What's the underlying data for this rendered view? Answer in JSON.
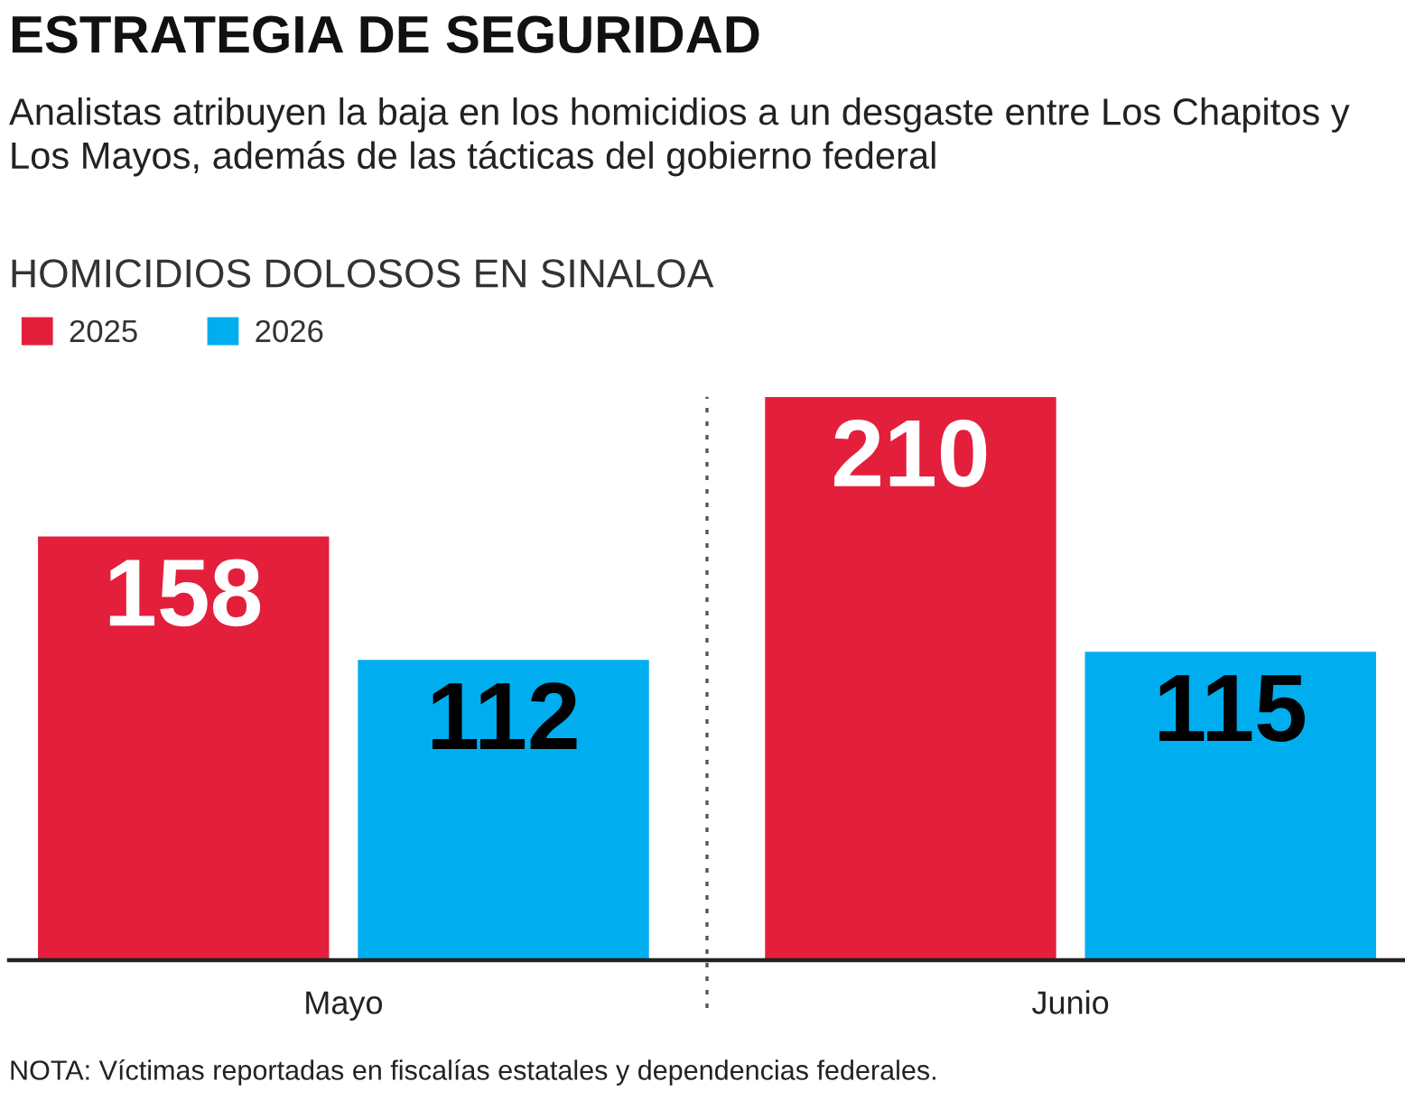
{
  "chart_data": {
    "type": "bar",
    "title": "ESTRATEGIA DE SEGURIDAD",
    "subtitle": "Analistas atribuyen la baja en los homicidios a un desgaste entre Los Chapitos y Los Mayos, además de las tácticas del gobierno federal",
    "annotations": [
      "HOMICIDIOS DOLOSOS EN SINALOA",
      "NOTA: Víctimas reportadas en fiscalías estatales y dependencias federales."
    ],
    "categories": [
      "Mayo",
      "Junio"
    ],
    "series": [
      {
        "name": "2025",
        "color": "#e31f3c",
        "values": [
          158,
          210
        ]
      },
      {
        "name": "2026",
        "color": "#00aeef",
        "values": [
          112,
          115
        ]
      }
    ],
    "data_labels": true,
    "legend": "top left",
    "tick_labels": "x"
  }
}
